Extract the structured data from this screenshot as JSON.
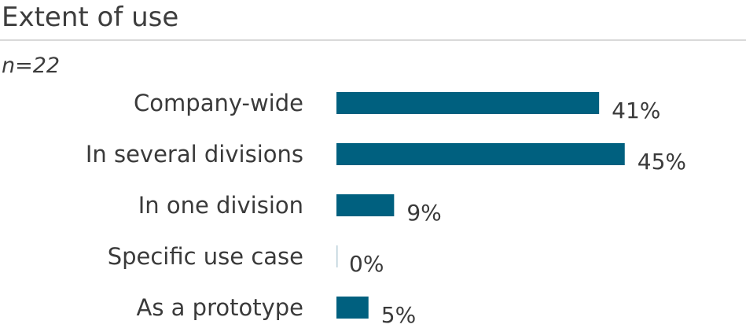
{
  "header": {
    "title": "Extent of use",
    "subtitle": "n=22"
  },
  "colors": {
    "bar": "#00607f",
    "zero_bar": "#b8cfd8",
    "rule": "#d9d9d9"
  },
  "chart_data": {
    "type": "bar",
    "orientation": "horizontal",
    "title": "Extent of use",
    "subtitle": "n=22",
    "categories": [
      "Company-wide",
      "In several divisions",
      "In one division",
      "Specific use case",
      "As a prototype"
    ],
    "values": [
      41,
      45,
      9,
      0,
      5
    ],
    "value_labels": [
      "41%",
      "45%",
      "9%",
      "0%",
      "5%"
    ],
    "unit": "%",
    "xlim": [
      0,
      100
    ],
    "xlabel": "",
    "ylabel": "",
    "grid": false,
    "legend": "none"
  }
}
